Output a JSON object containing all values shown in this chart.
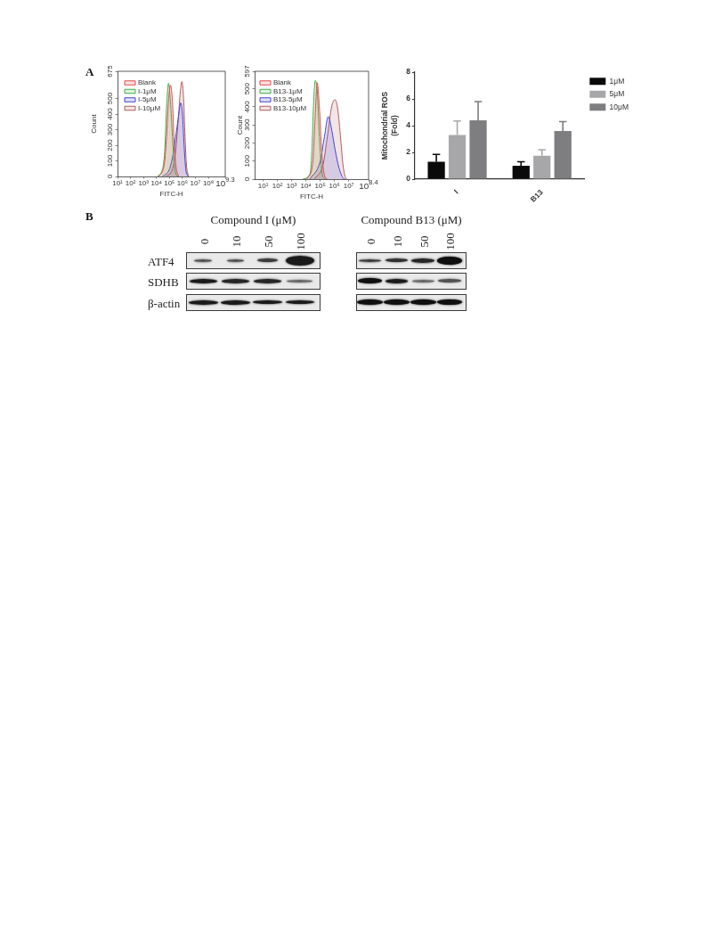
{
  "chart_data": [
    {
      "type": "area",
      "xlabel": "FITC-H",
      "ylabel": "Count",
      "log": "x",
      "xlim": [
        10,
        1995262315
      ],
      "xticks": [
        {
          "value": 10,
          "label": "10¹"
        },
        {
          "value": 100,
          "label": "10²"
        },
        {
          "value": 1000,
          "label": "10³"
        },
        {
          "value": 10000,
          "label": "10⁴"
        },
        {
          "value": 100000,
          "label": "10⁵"
        },
        {
          "value": 1000000,
          "label": "10⁶"
        },
        {
          "value": 10000000,
          "label": "10⁷"
        },
        {
          "value": 100000000,
          "label": "10⁸"
        },
        {
          "value": 1995262315,
          "label": "10$^{9.3}$"
        }
      ],
      "ylim": [
        0,
        675
      ],
      "yticks": [
        0,
        100,
        200,
        300,
        400,
        500,
        675
      ],
      "legend": "top left",
      "annotations": [
        "A"
      ],
      "series": [
        {
          "name": "Blank",
          "color": "#e5484d",
          "x": [
            15000,
            41000,
            60000,
            85000,
            120000,
            170000,
            220000,
            320000,
            500000
          ],
          "values": [
            0,
            85,
            255,
            481,
            585,
            481,
            255,
            66,
            0
          ]
        },
        {
          "name": "I-1μM",
          "color": "#3fae49",
          "x": [
            12000,
            29000,
            43000,
            60000,
            85000,
            120000,
            170000,
            230000,
            350000,
            500000
          ],
          "values": [
            0,
            47,
            160,
            443,
            598,
            481,
            255,
            85,
            9,
            0
          ]
        },
        {
          "name": "I-5μM",
          "color": "#4343d6",
          "x": [
            29000,
            100000,
            210000,
            350000,
            500000,
            740000,
            1000000,
            1350000,
            1820000,
            2700000
          ],
          "values": [
            0,
            47,
            160,
            292,
            387,
            472,
            406,
            198,
            47,
            0
          ]
        },
        {
          "name": "I-10μM",
          "color": "#b05c5c",
          "x": [
            55000,
            170000,
            300000,
            500000,
            680000,
            910000,
            1230000,
            1600000,
            2000000,
            2900000
          ],
          "values": [
            0,
            47,
            160,
            387,
            538,
            609,
            500,
            255,
            85,
            0
          ]
        }
      ]
    },
    {
      "type": "area",
      "xlabel": "FITC-H",
      "ylabel": "Count",
      "log": "x",
      "xlim": [
        2.5,
        251188643
      ],
      "xticks": [
        {
          "value": 10,
          "label": "10¹"
        },
        {
          "value": 100,
          "label": "10²"
        },
        {
          "value": 1000,
          "label": "10³"
        },
        {
          "value": 10000,
          "label": "10⁴"
        },
        {
          "value": 100000,
          "label": "10⁵"
        },
        {
          "value": 1000000,
          "label": "10⁶"
        },
        {
          "value": 10000000,
          "label": "10⁷"
        },
        {
          "value": 251188643,
          "label": "10$^{8.4}$"
        }
      ],
      "ylim": [
        0,
        597
      ],
      "yticks": [
        0,
        100,
        200,
        300,
        400,
        500,
        597
      ],
      "legend": "top left",
      "series": [
        {
          "name": "Blank",
          "color": "#e5484d",
          "x": [
            12000,
            31000,
            43000,
            62000,
            87000,
            130000,
            200000,
            320000
          ],
          "values": [
            0,
            98,
            320,
            534,
            406,
            149,
            21,
            0
          ]
        },
        {
          "name": "B13-1μM",
          "color": "#3fae49",
          "x": [
            5900,
            19000,
            26000,
            34000,
            45000,
            62000,
            87000,
            130000,
            200000,
            260000
          ],
          "values": [
            0,
            29,
            149,
            406,
            546,
            491,
            235,
            46,
            3,
            0
          ]
        },
        {
          "name": "B13-5μM",
          "color": "#4343d6",
          "x": [
            19000,
            100000,
            200000,
            370000,
            660000,
            1100000,
            2100000,
            4400000,
            5600000
          ],
          "values": [
            0,
            98,
            235,
            346,
            269,
            166,
            63,
            3,
            0
          ]
        },
        {
          "name": "B13-10μM",
          "color": "#b05c5c",
          "x": [
            39000,
            160000,
            320000,
            660000,
            1100000,
            1700000,
            2800000,
            4000000,
            6500000,
            7800000
          ],
          "values": [
            0,
            80,
            235,
            406,
            440,
            389,
            217,
            80,
            3,
            0
          ]
        }
      ]
    },
    {
      "type": "bar",
      "ylabel": "Mitochondrial ROS\n(Fold)",
      "categories": [
        "I",
        "B13"
      ],
      "ylim": [
        0,
        8
      ],
      "yticks": [
        0,
        2,
        4,
        6,
        8
      ],
      "legend": "top right",
      "series": [
        {
          "name": "1μM",
          "color": "#0a0a0a",
          "values": [
            1.3,
            1.0
          ],
          "errors": [
            [
              1.3,
              1.85
            ],
            [
              1.0,
              1.3
            ]
          ]
        },
        {
          "name": "5μM",
          "color": "#a7a7a9",
          "values": [
            3.3,
            1.75
          ],
          "errors": [
            [
              3.3,
              4.35
            ],
            [
              1.75,
              2.2
            ]
          ]
        },
        {
          "name": "10μM",
          "color": "#7e7e80",
          "values": [
            4.4,
            3.6
          ],
          "errors": [
            [
              4.4,
              5.8
            ],
            [
              3.6,
              4.3
            ]
          ]
        }
      ]
    },
    {
      "type": "other",
      "title": "Compound I (μM)",
      "categories": [
        "0",
        "10",
        "50",
        "100"
      ],
      "y_categories": [
        "ATF4",
        "SDHB",
        "β-actin"
      ],
      "annotations": [
        "B"
      ]
    },
    {
      "type": "other",
      "title": "Compound B13 (μM)",
      "categories": [
        "0",
        "10",
        "50",
        "100"
      ]
    }
  ]
}
